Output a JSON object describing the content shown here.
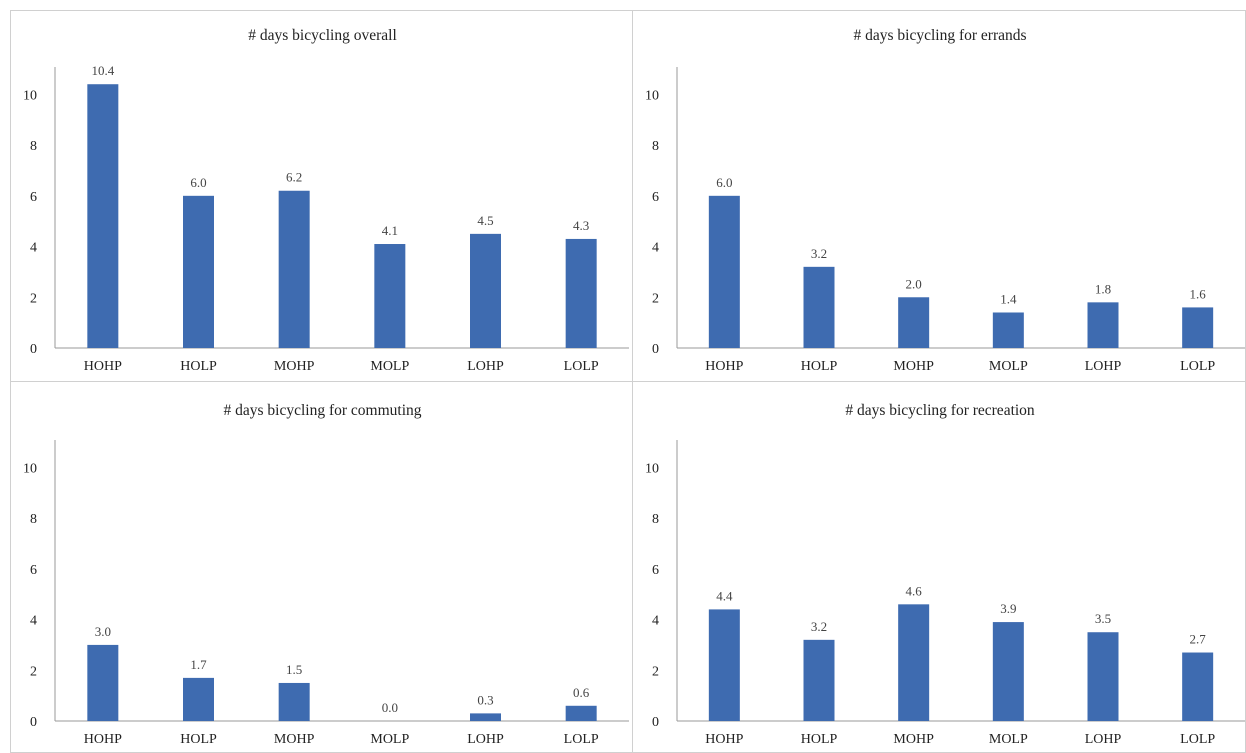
{
  "colors": {
    "bar": "#3e6bb0",
    "axis": "#9a9a9a",
    "panel_border": "#d0d0d0"
  },
  "chart_data": [
    {
      "type": "bar",
      "title": "# days bicycling overall",
      "categories": [
        "HOHP",
        "HOLP",
        "MOHP",
        "MOLP",
        "LOHP",
        "LOLP"
      ],
      "values": [
        10.4,
        6.0,
        6.2,
        4.1,
        4.5,
        4.3
      ],
      "value_labels": [
        "10.4",
        "6.0",
        "6.2",
        "4.1",
        "4.5",
        "4.3"
      ],
      "yticks": [
        "0",
        "2",
        "4",
        "6",
        "8",
        "10"
      ],
      "ylim": [
        0,
        11
      ],
      "grid": false
    },
    {
      "type": "bar",
      "title": "# days bicycling for errands",
      "categories": [
        "HOHP",
        "HOLP",
        "MOHP",
        "MOLP",
        "LOHP",
        "LOLP"
      ],
      "values": [
        6.0,
        3.2,
        2.0,
        1.4,
        1.8,
        1.6
      ],
      "value_labels": [
        "6.0",
        "3.2",
        "2.0",
        "1.4",
        "1.8",
        "1.6"
      ],
      "yticks": [
        "0",
        "2",
        "4",
        "6",
        "8",
        "10"
      ],
      "ylim": [
        0,
        11
      ],
      "grid": false
    },
    {
      "type": "bar",
      "title": "# days bicycling for commuting",
      "categories": [
        "HOHP",
        "HOLP",
        "MOHP",
        "MOLP",
        "LOHP",
        "LOLP"
      ],
      "values": [
        3.0,
        1.7,
        1.5,
        0.0,
        0.3,
        0.6
      ],
      "value_labels": [
        "3.0",
        "1.7",
        "1.5",
        "0.0",
        "0.3",
        "0.6"
      ],
      "yticks": [
        "0",
        "2",
        "4",
        "6",
        "8",
        "10"
      ],
      "ylim": [
        0,
        11
      ],
      "grid": false
    },
    {
      "type": "bar",
      "title": "# days bicycling for recreation",
      "categories": [
        "HOHP",
        "HOLP",
        "MOHP",
        "MOLP",
        "LOHP",
        "LOLP"
      ],
      "values": [
        4.4,
        3.2,
        4.6,
        3.9,
        3.5,
        2.7
      ],
      "value_labels": [
        "4.4",
        "3.2",
        "4.6",
        "3.9",
        "3.5",
        "2.7"
      ],
      "yticks": [
        "0",
        "2",
        "4",
        "6",
        "8",
        "10"
      ],
      "ylim": [
        0,
        11
      ],
      "grid": false
    }
  ]
}
